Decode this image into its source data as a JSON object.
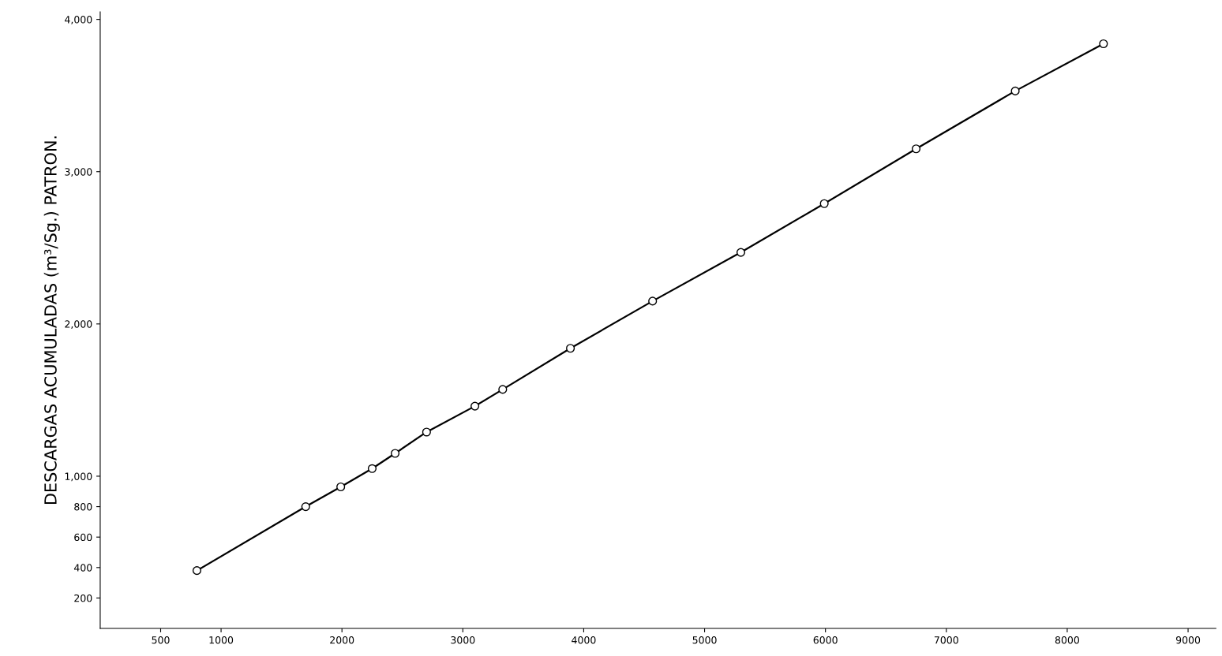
{
  "chart_data": {
    "type": "line",
    "ylabel": "DESCARGAS ACUMULADAS (m³/Sg.) PATRON.",
    "x": [
      800,
      1700,
      1990,
      2250,
      2440,
      2700,
      3100,
      3330,
      3890,
      4570,
      5300,
      5990,
      6750,
      7570,
      8300
    ],
    "series": [
      {
        "color": "#000000",
        "values": [
          380,
          800,
          930,
          1050,
          1150,
          1290,
          1460,
          1570,
          1840,
          2150,
          2470,
          2790,
          3150,
          3530,
          3840
        ]
      }
    ],
    "xlim": [
      0,
      9230
    ],
    "ylim": [
      0,
      4050
    ],
    "xticks": [
      500,
      1000,
      2000,
      3000,
      4000,
      5000,
      6000,
      7000,
      8000,
      9000
    ],
    "yticks": [
      200,
      400,
      600,
      800,
      {
        "value": 1000,
        "label": "1,000"
      },
      {
        "value": 2000,
        "label": "2,000"
      },
      {
        "value": 3000,
        "label": "3,000"
      },
      {
        "value": 4000,
        "label": "4,000"
      }
    ],
    "grid": false,
    "marker": "circle",
    "line_style": "solid"
  }
}
